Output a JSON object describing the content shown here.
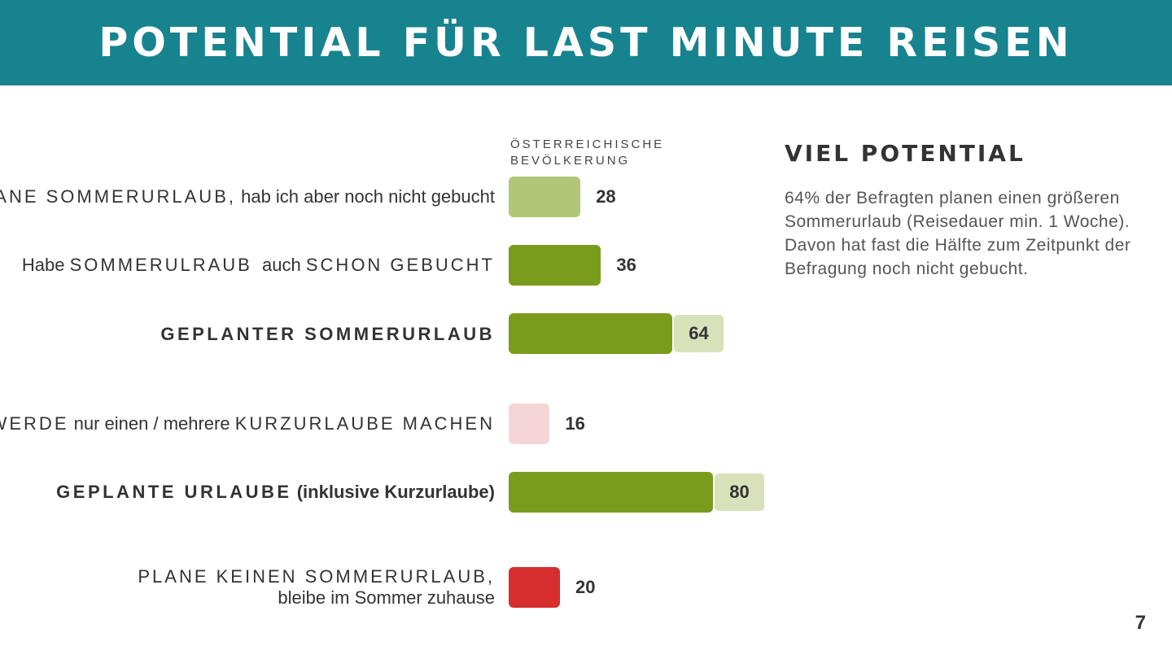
{
  "slide": {
    "title": "POTENTIAL FÜR LAST MINUTE REISEN",
    "page_number": "7"
  },
  "column_header": {
    "line1": "ÖSTERREICHISCHE",
    "line2": "BEVÖLKERUNG"
  },
  "rows": [
    {
      "label_caps": "PLANE SOMMERURLAUB,",
      "label_text": " hab ich aber noch nicht gebucht",
      "value": "28"
    },
    {
      "label_pre": "Habe ",
      "label_caps": "SOMMERULRAUB",
      "label_mid": "  auch ",
      "label_caps2": "SCHON GEBUCHT",
      "value": "36"
    },
    {
      "label_caps": "GEPLANTER SOMMERURLAUB",
      "value": "64"
    },
    {
      "label_caps": "WERDE",
      "label_mid": " nur einen / mehrere ",
      "label_caps2": "KURZURLAUBE MACHEN",
      "value": "16"
    },
    {
      "label_caps": "GEPLANTE URLAUBE",
      "label_text": " (inklusive Kurzurlaube)",
      "value": "80"
    },
    {
      "label_line1": "PLANE KEINEN SOMMERURLAUB,",
      "label_line2": "bleibe im Sommer zuhause",
      "value": "20"
    }
  ],
  "sidebar": {
    "heading": "VIEL POTENTIAL",
    "text": "64% der Befragten planen einen größeren Sommerurlaub (Reisedauer min. 1 Woche). Davon hat fast die Hälfte zum Zeitpunkt der Befragung noch nicht gebucht."
  },
  "colors": {
    "header_bg": "#17838f",
    "green_dark": "#7a9c1c",
    "green_light": "#b2c677",
    "green_pale": "#d7e2bb",
    "pink": "#f5d5d5",
    "red": "#d62e2e"
  },
  "chart_data": {
    "type": "bar",
    "orientation": "horizontal",
    "title": "",
    "series_label": "ÖSTERREICHISCHE BEVÖLKERUNG",
    "unit": "%",
    "categories": [
      "PLANE SOMMERURLAUB, hab ich aber noch nicht gebucht",
      "Habe SOMMERULRAUB auch SCHON GEBUCHT",
      "GEPLANTER SOMMERURLAUB",
      "WERDE nur einen / mehrere KURZURLAUBE MACHEN",
      "GEPLANTE URLAUBE (inklusive Kurzurlaube)",
      "PLANE KEINEN SOMMERURLAUB, bleibe im Sommer zuhause"
    ],
    "values": [
      28,
      36,
      64,
      16,
      80,
      20
    ],
    "bar_colors": [
      "#b2c677",
      "#7a9c1c",
      "#7a9c1c",
      "#f5d5d5",
      "#7a9c1c",
      "#d62e2e"
    ],
    "xlim": [
      0,
      100
    ],
    "legend": "none"
  }
}
